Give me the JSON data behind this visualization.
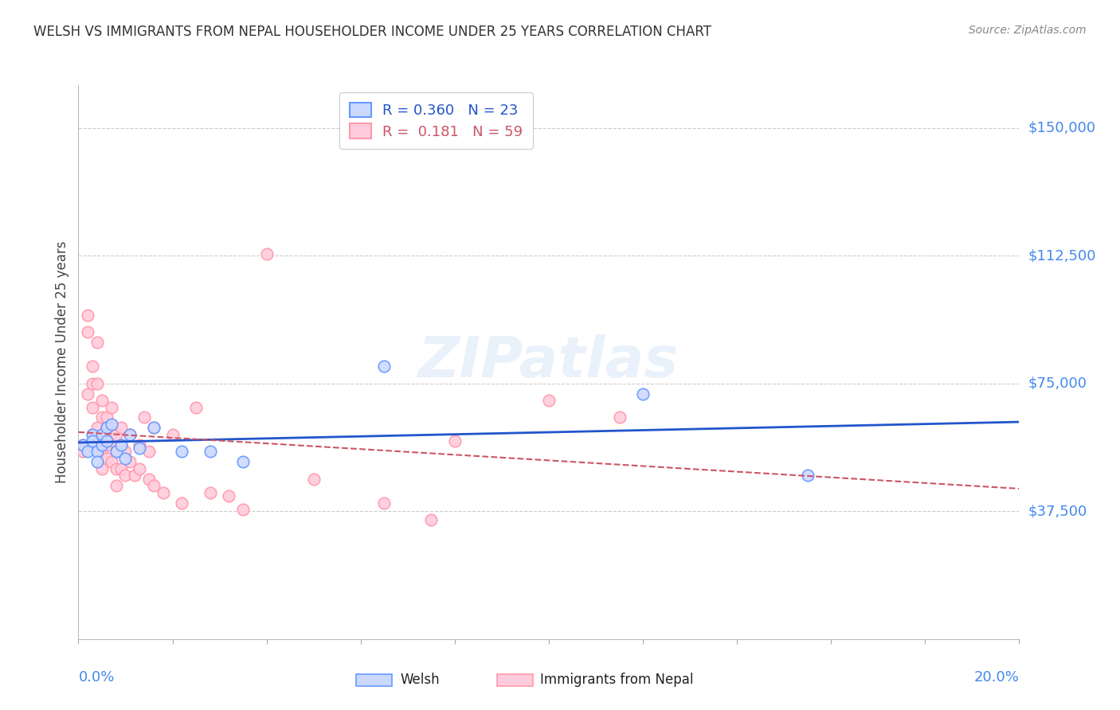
{
  "title": "WELSH VS IMMIGRANTS FROM NEPAL HOUSEHOLDER INCOME UNDER 25 YEARS CORRELATION CHART",
  "source": "Source: ZipAtlas.com",
  "ylabel": "Householder Income Under 25 years",
  "ytick_values": [
    37500,
    75000,
    112500,
    150000
  ],
  "ymin": 0,
  "ymax": 162500,
  "xmin": 0.0,
  "xmax": 0.2,
  "legend_welsh_r": "R = 0.360",
  "legend_welsh_n": "N = 23",
  "legend_nepal_r": "R =  0.181",
  "legend_nepal_n": "N = 59",
  "welsh_edge_color": "#6699ff",
  "nepal_edge_color": "#ff99aa",
  "welsh_fill_color": "#ccd9ff",
  "nepal_fill_color": "#ffccdd",
  "trendline_welsh_color": "#2255cc",
  "trendline_nepal_color": "#cc5566",
  "label_color": "#4488ee",
  "watermark": "ZIPatlas",
  "background_color": "#ffffff",
  "welsh_x": [
    0.001,
    0.002,
    0.003,
    0.003,
    0.004,
    0.004,
    0.005,
    0.005,
    0.006,
    0.006,
    0.007,
    0.008,
    0.009,
    0.01,
    0.011,
    0.013,
    0.016,
    0.022,
    0.028,
    0.035,
    0.065,
    0.12,
    0.155
  ],
  "welsh_y": [
    57000,
    55000,
    60000,
    58000,
    55000,
    52000,
    60000,
    57000,
    62000,
    58000,
    63000,
    55000,
    57000,
    53000,
    60000,
    56000,
    62000,
    55000,
    55000,
    52000,
    80000,
    72000,
    48000
  ],
  "nepal_x": [
    0.001,
    0.001,
    0.002,
    0.002,
    0.002,
    0.003,
    0.003,
    0.003,
    0.003,
    0.004,
    0.004,
    0.004,
    0.004,
    0.005,
    0.005,
    0.005,
    0.005,
    0.005,
    0.006,
    0.006,
    0.006,
    0.006,
    0.007,
    0.007,
    0.007,
    0.007,
    0.008,
    0.008,
    0.008,
    0.008,
    0.009,
    0.009,
    0.009,
    0.01,
    0.01,
    0.011,
    0.011,
    0.012,
    0.013,
    0.013,
    0.014,
    0.015,
    0.015,
    0.016,
    0.016,
    0.018,
    0.02,
    0.022,
    0.025,
    0.028,
    0.032,
    0.035,
    0.04,
    0.05,
    0.065,
    0.075,
    0.08,
    0.1,
    0.115
  ],
  "nepal_y": [
    57000,
    55000,
    95000,
    90000,
    72000,
    80000,
    75000,
    68000,
    60000,
    87000,
    75000,
    62000,
    58000,
    70000,
    65000,
    60000,
    55000,
    50000,
    65000,
    62000,
    57000,
    53000,
    68000,
    62000,
    58000,
    52000,
    60000,
    55000,
    50000,
    45000,
    62000,
    57000,
    50000,
    55000,
    48000,
    60000,
    52000,
    48000,
    57000,
    50000,
    65000,
    55000,
    47000,
    62000,
    45000,
    43000,
    60000,
    40000,
    68000,
    43000,
    42000,
    38000,
    113000,
    47000,
    40000,
    35000,
    58000,
    70000,
    65000
  ]
}
